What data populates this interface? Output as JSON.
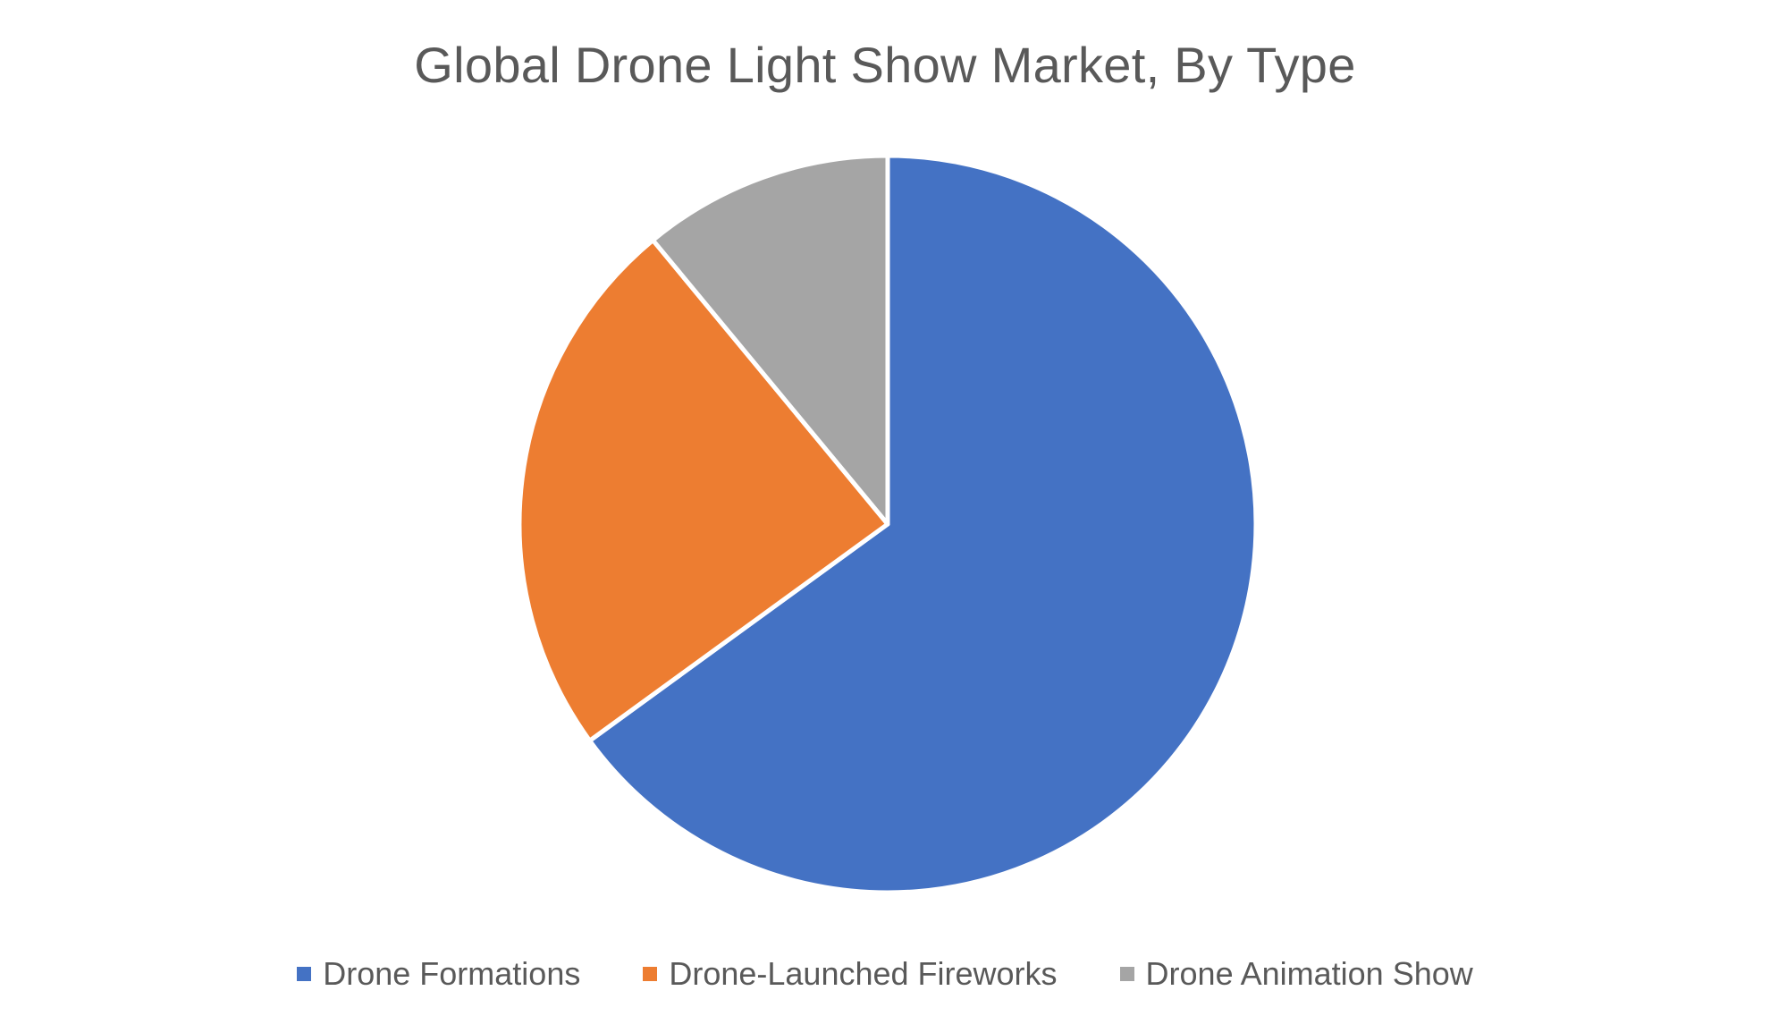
{
  "chart_data": {
    "type": "pie",
    "title": "Global Drone Light Show Market, By Type",
    "categories": [
      "Drone Formations",
      "Drone-Launched Fireworks",
      "Drone Animation Show"
    ],
    "values": [
      0.65,
      0.24,
      0.11
    ],
    "colors": [
      "#4472C4",
      "#ED7D31",
      "#A5A5A5"
    ],
    "start_angle_deg": 0,
    "direction": "clockwise",
    "legend_position": "bottom"
  },
  "legend": {
    "items": [
      {
        "label": "Drone Formations",
        "color": "#4472C4"
      },
      {
        "label": "Drone-Launched Fireworks",
        "color": "#ED7D31"
      },
      {
        "label": "Drone Animation Show",
        "color": "#A5A5A5"
      }
    ]
  }
}
